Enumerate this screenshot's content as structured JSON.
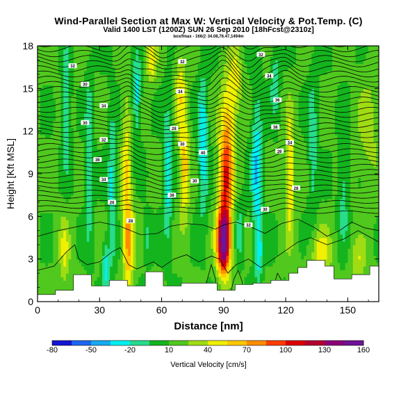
{
  "header": {
    "title": "Wind-Parallel Section at Max W: Vertical Velocity & Pot.Temp. (C)",
    "subtitle": "Valid 1400 LST (1200Z) SUN 26 Sep 2010 [18hFcst@2310z]",
    "subsubtitle": "box/fmax - 166@ 34.08,76.47,1494m"
  },
  "chart_data": {
    "type": "heatmap",
    "title": "Wind-Parallel Section at Max W: Vertical Velocity & Pot.Temp. (C)",
    "xlabel": "Distance [nm]",
    "ylabel": "Height [Kft MSL]",
    "xlim": [
      0,
      165
    ],
    "ylim": [
      0,
      18
    ],
    "x_ticks": [
      0,
      30,
      60,
      90,
      120,
      150
    ],
    "y_ticks": [
      0,
      3,
      6,
      9,
      12,
      15,
      18
    ],
    "grid": false,
    "colorbar": {
      "label": "Vertical Velocity [cm/s]",
      "tick_labels": [
        "-80",
        "-50",
        "-20",
        "10",
        "40",
        "70",
        "100",
        "130",
        "160"
      ],
      "colors": [
        "#1414d2",
        "#1e64f0",
        "#14aaf0",
        "#00f0f0",
        "#28dc8c",
        "#14b41e",
        "#50c81e",
        "#a0dc14",
        "#f0f000",
        "#ffc800",
        "#ff8c00",
        "#ff3c00",
        "#dc0000",
        "#b40032",
        "#8c0078",
        "#6e1496"
      ]
    },
    "velocity_features": [
      {
        "x": 90,
        "center_height": 4.2,
        "peak": 166
      },
      {
        "x": 44,
        "center_height": 3.5,
        "peak": 70
      },
      {
        "x": 106,
        "center_height": 9.5,
        "peak": -30
      },
      {
        "x": 80,
        "center_height": 11,
        "peak": -30
      }
    ],
    "contour_labels": [
      "26",
      "28",
      "30",
      "32",
      "34",
      "36",
      "38",
      "40"
    ],
    "terrain_heights_kft": [
      0.5,
      0.5,
      0.8,
      0.8,
      1.9,
      1.9,
      1.1,
      1.1,
      1.5,
      1.5,
      1.1,
      1.1,
      2.1,
      2.1,
      1.1,
      1.1,
      1.3,
      1.3,
      1.3,
      1.3,
      0.8,
      0.8,
      1.2,
      1.2,
      1.3,
      1.3,
      1.5,
      1.5,
      2.0,
      2.4,
      2.9,
      2.9,
      2.5,
      1.6,
      1.6,
      1.9,
      1.9,
      2.5
    ]
  }
}
